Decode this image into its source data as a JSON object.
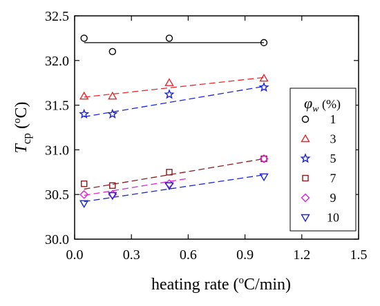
{
  "chart_data": {
    "type": "scatter",
    "title": "",
    "xlabel": {
      "main": "heating rate (",
      "sup": "o",
      "rest": "C/min)"
    },
    "ylabel": {
      "T": "T",
      "sub": "cp",
      "open": " (",
      "sup": "o",
      "rest": "C)"
    },
    "xlim": [
      0.0,
      1.5
    ],
    "ylim": [
      30.0,
      32.5
    ],
    "xticks": [
      "0.0",
      "0.3",
      "0.6",
      "0.9",
      "1.2",
      "1.5"
    ],
    "yticks": [
      "30.0",
      "30.5",
      "31.0",
      "31.5",
      "32.0",
      "32.5"
    ],
    "grid": false,
    "legend": {
      "placement": "right",
      "title": {
        "phi": "φ",
        "sub": "w",
        "rest": " (%)"
      }
    },
    "series": [
      {
        "name": "1",
        "marker": "circle",
        "color": "#000000",
        "x": [
          0.05,
          0.2,
          0.5,
          1.0
        ],
        "y": [
          32.25,
          32.1,
          32.25,
          32.2
        ],
        "fit": {
          "style": "solid",
          "x": [
            0.05,
            1.0
          ],
          "y": [
            32.2,
            32.2
          ]
        }
      },
      {
        "name": "3",
        "marker": "triangle-up",
        "color": "#e8262a",
        "x": [
          0.05,
          0.2,
          0.5,
          1.0
        ],
        "y": [
          31.6,
          31.6,
          31.75,
          31.8
        ],
        "fit": {
          "style": "dashed",
          "x": [
            0.05,
            1.0
          ],
          "y": [
            31.59,
            31.81
          ]
        }
      },
      {
        "name": "5",
        "marker": "star",
        "color": "#1a23d6",
        "x": [
          0.05,
          0.2,
          0.5,
          1.0
        ],
        "y": [
          31.4,
          31.4,
          31.62,
          31.7
        ],
        "fit": {
          "style": "dashed",
          "x": [
            0.05,
            1.0
          ],
          "y": [
            31.37,
            31.71
          ]
        }
      },
      {
        "name": "7",
        "marker": "square",
        "color": "#8b1a1a",
        "x": [
          0.05,
          0.2,
          0.5,
          1.0
        ],
        "y": [
          30.62,
          30.6,
          30.75,
          30.9
        ],
        "fit": {
          "style": "dashed",
          "x": [
            0.05,
            1.0
          ],
          "y": [
            30.56,
            30.9
          ]
        }
      },
      {
        "name": "9",
        "marker": "diamond",
        "color": "#e020e0",
        "x": [
          0.05,
          0.2,
          0.5,
          1.0
        ],
        "y": [
          30.5,
          30.5,
          30.62,
          30.9
        ],
        "fit": {
          "style": "dashed",
          "x": [
            0.05,
            0.6
          ],
          "y": [
            30.49,
            30.68
          ]
        }
      },
      {
        "name": "10",
        "marker": "triangle-down",
        "color": "#1a23d6",
        "x": [
          0.05,
          0.2,
          0.5,
          1.0
        ],
        "y": [
          30.4,
          30.49,
          30.6,
          30.7
        ],
        "fit": {
          "style": "dashed",
          "x": [
            0.05,
            1.0
          ],
          "y": [
            30.42,
            30.72
          ]
        }
      }
    ]
  }
}
